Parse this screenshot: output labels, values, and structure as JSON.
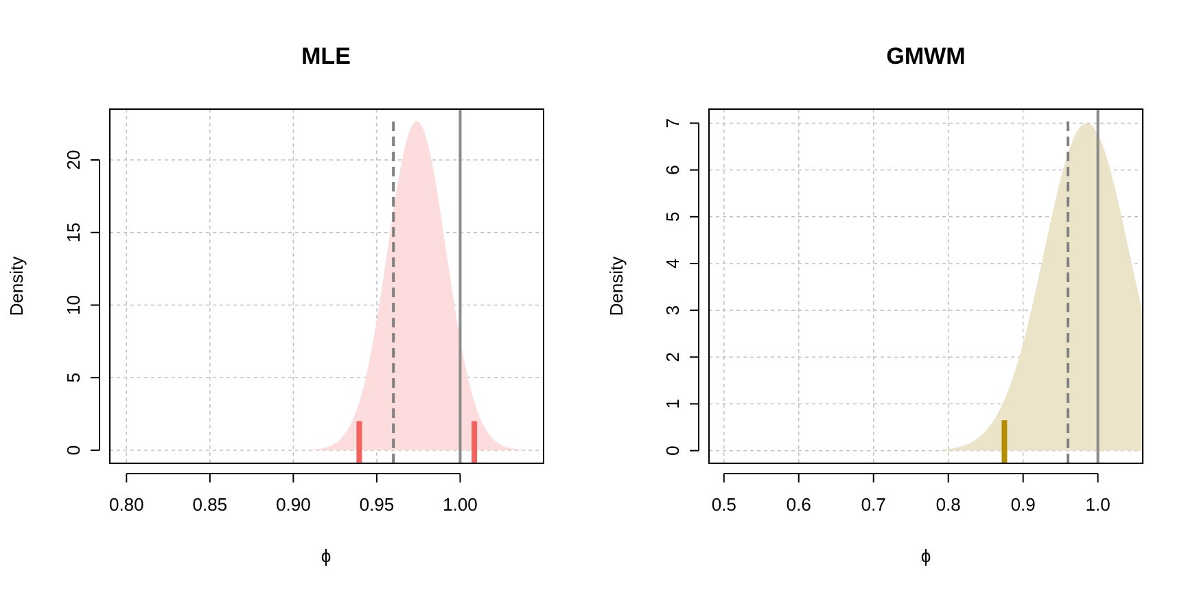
{
  "chart_data": [
    {
      "type": "area",
      "title": "MLE",
      "xlabel": "ϕ",
      "ylabel": "Density",
      "xlim": [
        0.79,
        1.05
      ],
      "ylim": [
        -0.9,
        23.5
      ],
      "xticks": [
        0.8,
        0.85,
        0.9,
        0.95,
        1.0
      ],
      "xtick_labels": [
        "0.80",
        "0.85",
        "0.90",
        "0.95",
        "1.00"
      ],
      "yticks": [
        0,
        5,
        10,
        15,
        20
      ],
      "ytick_labels": [
        "0",
        "5",
        "10",
        "15",
        "20"
      ],
      "grid": true,
      "density": {
        "mean": 0.974,
        "sd": 0.0176,
        "from": 0.9,
        "to": 1.04,
        "color": "#fcdcdc"
      },
      "vlines": [
        {
          "x": 0.96,
          "style": "dashed",
          "color": "#7f7f7f",
          "top": 22.9
        },
        {
          "x": 1.0,
          "style": "solid",
          "color": "#8c8c8c",
          "top": 23.5
        }
      ],
      "markers": [
        {
          "x": 0.9395,
          "height": 2.0,
          "color": "#f2635f"
        },
        {
          "x": 1.0085,
          "height": 2.0,
          "color": "#f2635f"
        }
      ]
    },
    {
      "type": "area",
      "title": "GMWM",
      "xlabel": "ϕ",
      "ylabel": "Density",
      "xlim": [
        0.48,
        1.06
      ],
      "ylim": [
        -0.27,
        7.3
      ],
      "xticks": [
        0.5,
        0.6,
        0.7,
        0.8,
        0.9,
        1.0
      ],
      "xtick_labels": [
        "0.5",
        "0.6",
        "0.7",
        "0.8",
        "0.9",
        "1.0"
      ],
      "yticks": [
        0,
        1,
        2,
        3,
        4,
        5,
        6,
        7
      ],
      "ytick_labels": [
        "0",
        "1",
        "2",
        "3",
        "4",
        "5",
        "6",
        "7"
      ],
      "grid": true,
      "density": {
        "mean": 0.985,
        "sd": 0.057,
        "from": 0.79,
        "to": 1.06,
        "color": "#ebe4c8"
      },
      "vlines": [
        {
          "x": 0.96,
          "style": "dashed",
          "color": "#7f7f7f",
          "top": 7.15
        },
        {
          "x": 1.0,
          "style": "solid",
          "color": "#8c8c8c",
          "top": 7.3
        }
      ],
      "markers": [
        {
          "x": 0.875,
          "height": 0.65,
          "color": "#b38f00"
        }
      ]
    }
  ]
}
